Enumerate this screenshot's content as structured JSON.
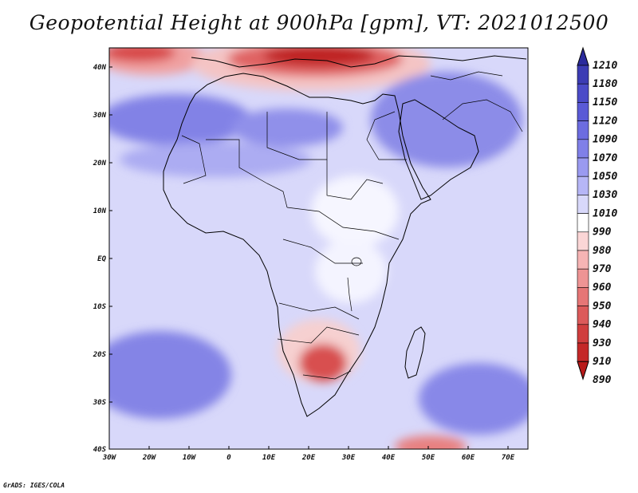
{
  "title": "Geopotential Height at 900hPa [gpm], VT: 2021012500",
  "credit": "GrADS: IGES/COLA",
  "map": {
    "lon_labels": [
      "30W",
      "20W",
      "10W",
      "0",
      "10E",
      "20E",
      "30E",
      "40E",
      "50E",
      "60E",
      "70E"
    ],
    "lat_labels": [
      "40N",
      "30N",
      "20N",
      "10N",
      "EQ",
      "10S",
      "20S",
      "30S",
      "40S"
    ],
    "lon_range": [
      -30,
      75
    ],
    "lat_range": [
      -40,
      44
    ],
    "colors": {
      "ocean_base": "#d8d8fa",
      "land_base": "#e2e2fc",
      "outline": "#000000"
    }
  },
  "colorbar": {
    "labels": [
      "1210",
      "1180",
      "1150",
      "1120",
      "1090",
      "1070",
      "1050",
      "1030",
      "1010",
      "990",
      "980",
      "970",
      "960",
      "950",
      "940",
      "930",
      "910",
      "890"
    ],
    "colors": [
      "#2b2b9c",
      "#3c3cb4",
      "#4b4bc8",
      "#5a5ad6",
      "#6c6ce0",
      "#8080e8",
      "#9a9af0",
      "#b6b6f6",
      "#d8d8fa",
      "#ffffff",
      "#fbd6d6",
      "#f6b4b4",
      "#ee9494",
      "#e67676",
      "#dc5a5a",
      "#d03e3e",
      "#c42828",
      "#b81a1a"
    ]
  }
}
